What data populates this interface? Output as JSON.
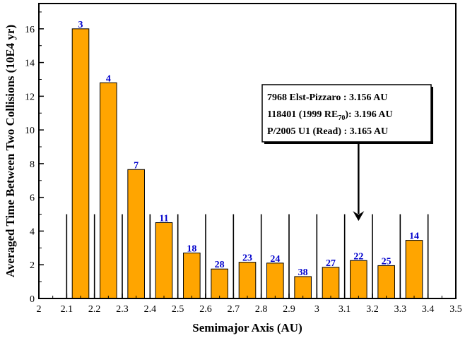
{
  "chart_data": {
    "type": "bar",
    "xlabel": "Semimajor Axis (AU)",
    "ylabel": "Averaged Time Between Two Collisions (10E4 yr)",
    "xlim": [
      2.0,
      3.5
    ],
    "ylim": [
      0,
      17.5
    ],
    "x_ticks": [
      "2",
      "2.1",
      "2.2",
      "2.3",
      "2.4",
      "2.5",
      "2.6",
      "2.7",
      "2.8",
      "2.9",
      "3",
      "3.1",
      "3.2",
      "3.3",
      "3.4",
      "3.5"
    ],
    "y_ticks": [
      "0",
      "2",
      "4",
      "6",
      "8",
      "10",
      "12",
      "14",
      "16"
    ],
    "bins": [
      {
        "x": 2.15,
        "value": 16.0,
        "label": "3"
      },
      {
        "x": 2.25,
        "value": 12.8,
        "label": "4"
      },
      {
        "x": 2.35,
        "value": 7.65,
        "label": "7"
      },
      {
        "x": 2.45,
        "value": 4.5,
        "label": "11"
      },
      {
        "x": 2.55,
        "value": 2.7,
        "label": "18"
      },
      {
        "x": 2.65,
        "value": 1.75,
        "label": "28"
      },
      {
        "x": 2.75,
        "value": 2.15,
        "label": "23"
      },
      {
        "x": 2.85,
        "value": 2.1,
        "label": "24"
      },
      {
        "x": 2.95,
        "value": 1.3,
        "label": "38"
      },
      {
        "x": 3.05,
        "value": 1.85,
        "label": "27"
      },
      {
        "x": 3.15,
        "value": 2.25,
        "label": "22"
      },
      {
        "x": 3.25,
        "value": 1.95,
        "label": "25"
      },
      {
        "x": 3.35,
        "value": 3.45,
        "label": "14"
      }
    ],
    "separator_lines": {
      "x": [
        2.1,
        2.2,
        2.3,
        2.4,
        2.5,
        2.6,
        2.7,
        2.8,
        2.9,
        3.0,
        3.1,
        3.2,
        3.3,
        3.4
      ],
      "height": 5
    },
    "arrow": {
      "x": 3.15,
      "y_from": 9.3,
      "y_to": 4.6
    },
    "colors": {
      "bar": "#FFA500",
      "label": "#0000CC",
      "line": "#000000"
    },
    "legend": {
      "placement": "top-right",
      "entries": [
        {
          "name": "7968 Elst-Pizzaro",
          "sep": " : ",
          "value": "3.156 AU"
        },
        {
          "name": "118401 (1999 RE",
          "sub": "70",
          "tail": ")",
          "sep": ": ",
          "value": "3.196 AU"
        },
        {
          "name": "P/2005 U1 (Read)",
          "sep": " : ",
          "value": "3.165 AU"
        }
      ]
    }
  }
}
